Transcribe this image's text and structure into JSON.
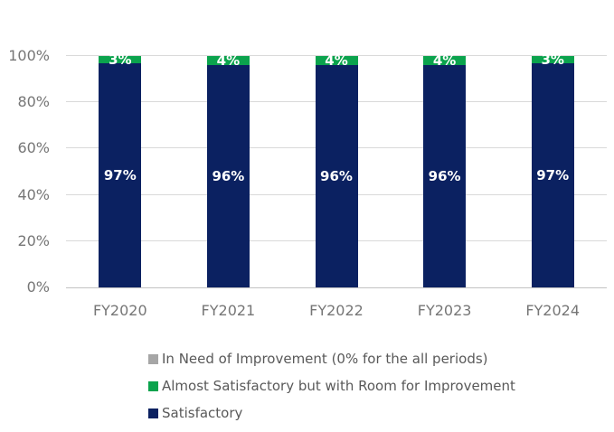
{
  "chart_data": {
    "type": "bar",
    "stacked": true,
    "title": "",
    "xlabel": "",
    "ylabel": "",
    "categories": [
      "FY2020",
      "FY2021",
      "FY2022",
      "FY2023",
      "FY2024"
    ],
    "series": [
      {
        "key": "satisfactory",
        "name": "Satisfactory",
        "color": "#0b2161",
        "values": [
          97,
          96,
          96,
          96,
          97
        ]
      },
      {
        "key": "almost-satisfactory",
        "name": "Almost Satisfactory but with Room for Improvement",
        "color": "#0ba34d",
        "values": [
          3,
          4,
          4,
          4,
          3
        ]
      },
      {
        "key": "in-need-of-improvement",
        "name": "In Need of Improvement (0% for the all periods)",
        "color": "#a6a6a6",
        "values": [
          0,
          0,
          0,
          0,
          0
        ]
      }
    ],
    "value_suffix": "%",
    "ylim": [
      0,
      100
    ],
    "yticks": [
      {
        "value": 0,
        "label": "0%"
      },
      {
        "value": 20,
        "label": "20%"
      },
      {
        "value": 40,
        "label": "40%"
      },
      {
        "value": 60,
        "label": "60%"
      },
      {
        "value": 80,
        "label": "80%"
      },
      {
        "value": 100,
        "label": "100%"
      }
    ],
    "grid": true,
    "legend_position": "bottom",
    "legend": [
      {
        "key": "in-need-of-improvement",
        "label": "In Need of Improvement (0% for the all periods)",
        "color": "#a6a6a6"
      },
      {
        "key": "almost-satisfactory",
        "label": "Almost Satisfactory but with Room for Improvement",
        "color": "#0ba34d"
      },
      {
        "key": "satisfactory",
        "label": "Satisfactory",
        "color": "#0b2161"
      }
    ],
    "colors": {
      "background": "#ffffff",
      "gridline": "#d9d9d9",
      "axis_line": "#c3c3c3",
      "tick_text": "#767676",
      "legend_text": "#595959",
      "data_label_text": "#ffffff"
    }
  }
}
